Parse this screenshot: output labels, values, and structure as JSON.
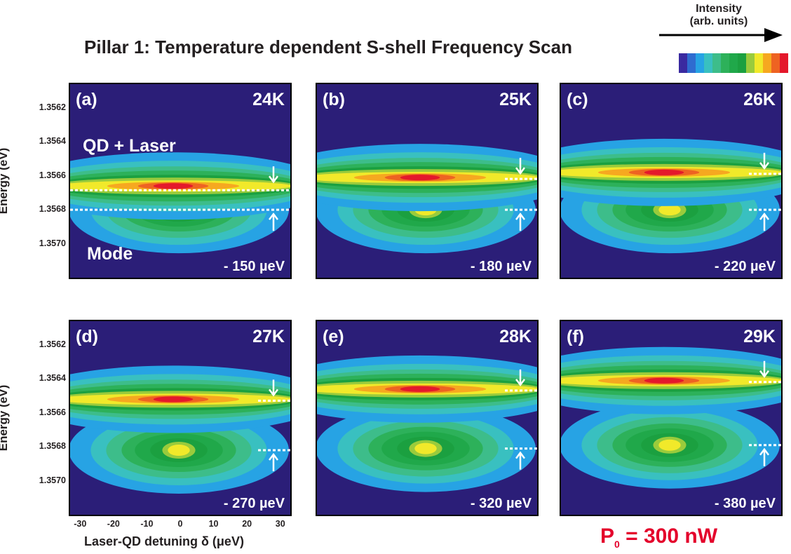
{
  "figure": {
    "title": "Pillar 1: Temperature dependent S-shell Frequency Scan",
    "legend_title": "Intensity\n(arb. units)",
    "ylabel": "Energy (eV)",
    "xlabel": "Laser-QD detuning δ (μeV)",
    "power_label": "P",
    "power_sub": "0",
    "power_value": " = 300 nW",
    "qd_laser_label": "QD + Laser",
    "mode_label": "Mode",
    "colorscale": [
      "#2b1e78",
      "#3a2aa0",
      "#2f6cd0",
      "#27a3e4",
      "#39c0c0",
      "#3dbd8a",
      "#2db15a",
      "#20a84a",
      "#1ba040",
      "#9acb3c",
      "#f1e92a",
      "#f6a820",
      "#ee6322",
      "#e4182b"
    ],
    "background_color": "#2b1e78"
  },
  "chart_data": [
    {
      "type": "heatmap",
      "panel": "(a)",
      "temperature": "24K",
      "shift_label": "- 150 µeV",
      "laser_energy": 1.35666,
      "mode_energy": 1.3568,
      "xlim": [
        -33,
        33
      ],
      "ylim": [
        1.3572,
        1.35606
      ],
      "yticks": [
        1.3562,
        1.3564,
        1.3566,
        1.3568,
        1.357
      ],
      "yticklabels": [
        "1.3562",
        "1.3564",
        "1.3566",
        "1.3568",
        "1.3570"
      ]
    },
    {
      "type": "heatmap",
      "panel": "(b)",
      "temperature": "25K",
      "shift_label": "- 180 µeV",
      "laser_energy": 1.35661,
      "mode_energy": 1.3568,
      "xlim": [
        -33,
        33
      ],
      "ylim": [
        1.3572,
        1.35606
      ]
    },
    {
      "type": "heatmap",
      "panel": "(c)",
      "temperature": "26K",
      "shift_label": "- 220 µeV",
      "laser_energy": 1.35658,
      "mode_energy": 1.3568,
      "xlim": [
        -33,
        33
      ],
      "ylim": [
        1.3572,
        1.35606
      ]
    },
    {
      "type": "heatmap",
      "panel": "(d)",
      "temperature": "27K",
      "shift_label": "- 270 µeV",
      "laser_energy": 1.35652,
      "mode_energy": 1.35682,
      "xlim": [
        -33,
        33
      ],
      "ylim": [
        1.3572,
        1.35606
      ],
      "xticks": [
        -30,
        -20,
        -10,
        0,
        10,
        20,
        30
      ],
      "xticklabels": [
        "-30",
        "-20",
        "-10",
        "0",
        "10",
        "20",
        "30"
      ]
    },
    {
      "type": "heatmap",
      "panel": "(e)",
      "temperature": "28K",
      "shift_label": "- 320 µeV",
      "laser_energy": 1.35646,
      "mode_energy": 1.35681,
      "xlim": [
        -33,
        33
      ],
      "ylim": [
        1.3572,
        1.35606
      ]
    },
    {
      "type": "heatmap",
      "panel": "(f)",
      "temperature": "29K",
      "shift_label": "- 380 µeV",
      "laser_energy": 1.35641,
      "mode_energy": 1.35679,
      "xlim": [
        -33,
        33
      ],
      "ylim": [
        1.3572,
        1.35606
      ]
    }
  ]
}
